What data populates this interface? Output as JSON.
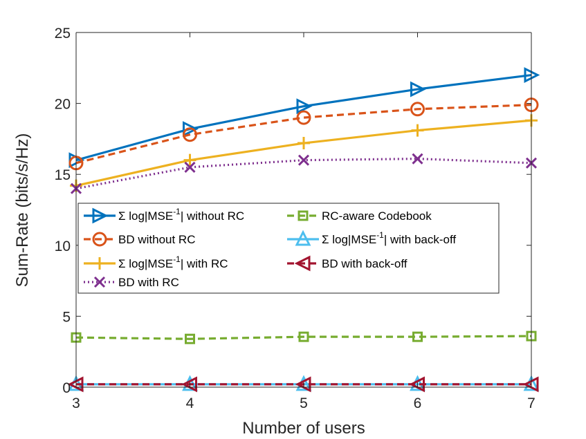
{
  "chart_data": {
    "type": "line",
    "title": "",
    "xlabel": "Number of users",
    "ylabel": "Sum-Rate (bits/s/Hz)",
    "x": [
      3,
      4,
      5,
      6,
      7
    ],
    "xlim": [
      3,
      7
    ],
    "ylim": [
      0,
      25
    ],
    "xticks": [
      3,
      4,
      5,
      6,
      7
    ],
    "yticks": [
      0,
      5,
      10,
      15,
      20,
      25
    ],
    "grid": false,
    "legend_location": "center-left",
    "series": [
      {
        "name": "Σ log|MSE⁻¹| without RC",
        "label_main": "Σ log|MSE",
        "label_sup": "-1",
        "label_rest": "| without RC",
        "values": [
          16.0,
          18.2,
          19.8,
          21.0,
          22.0
        ],
        "color": "#0072BD",
        "dash": "solid",
        "marker": "triangle-right"
      },
      {
        "name": "BD without RC",
        "label_main": "BD without RC",
        "values": [
          15.8,
          17.8,
          19.0,
          19.6,
          19.9
        ],
        "color": "#D95319",
        "dash": "dashed",
        "marker": "circle"
      },
      {
        "name": "Σ log|MSE⁻¹| with RC",
        "label_main": "Σ log|MSE",
        "label_sup": "-1",
        "label_rest": "| with RC",
        "values": [
          14.2,
          16.0,
          17.2,
          18.1,
          18.8
        ],
        "color": "#EDB120",
        "dash": "solid",
        "marker": "plus"
      },
      {
        "name": "BD with RC",
        "label_main": "BD with RC",
        "values": [
          14.0,
          15.5,
          16.0,
          16.1,
          15.8
        ],
        "color": "#7E2F8E",
        "dash": "dotted",
        "marker": "x"
      },
      {
        "name": "RC-aware Codebook",
        "label_main": "RC-aware Codebook",
        "values": [
          3.5,
          3.4,
          3.55,
          3.55,
          3.6
        ],
        "color": "#77AC30",
        "dash": "dashed",
        "marker": "square"
      },
      {
        "name": "Σ log|MSE⁻¹| with back-off",
        "label_main": "Σ log|MSE",
        "label_sup": "-1",
        "label_rest": "| with back-off",
        "values": [
          0.2,
          0.2,
          0.2,
          0.2,
          0.2
        ],
        "color": "#4DBEEE",
        "dash": "solid",
        "marker": "triangle-up"
      },
      {
        "name": "BD with back-off",
        "label_main": "BD with back-off",
        "values": [
          0.2,
          0.2,
          0.2,
          0.2,
          0.2
        ],
        "color": "#A2142F",
        "dash": "dashed",
        "marker": "triangle-left"
      }
    ]
  }
}
